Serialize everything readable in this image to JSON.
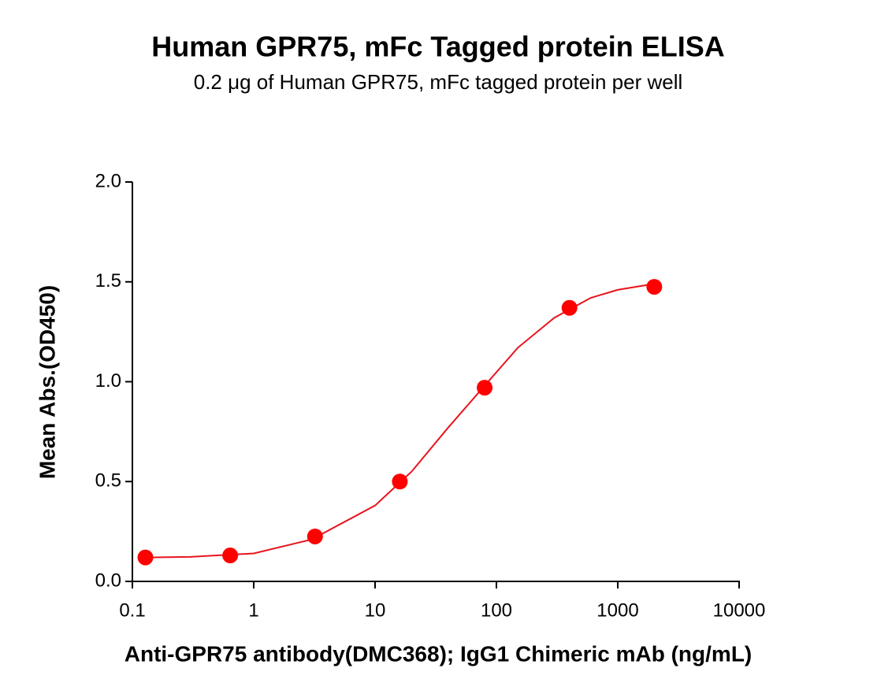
{
  "chart_data": {
    "type": "scatter",
    "title": "Human GPR75, mFc Tagged protein ELISA",
    "subtitle": "0.2 μg of Human GPR75, mFc tagged protein per well",
    "x_label": "Anti-GPR75 antibody(DMC368); IgG1 Chimeric mAb (ng/mL)",
    "y_label": "Mean Abs.(OD450)",
    "x_scale": "log",
    "xlim": [
      0.1,
      10000
    ],
    "xticks": [
      0.1,
      1,
      10,
      100,
      1000,
      10000
    ],
    "ylim": [
      0,
      2
    ],
    "yticks": [
      {
        "value": 0,
        "label": "0.0"
      },
      0.5,
      {
        "value": 1,
        "label": "1.0"
      },
      1.5,
      {
        "value": 2,
        "label": "2.0"
      }
    ],
    "grid": false,
    "series": [
      {
        "color": "#ff0000",
        "marker": "circle",
        "line": false,
        "x": [
          0.128,
          0.64,
          3.2,
          16,
          80,
          400,
          2000
        ],
        "values": [
          0.12,
          0.13,
          0.225,
          0.5,
          0.97,
          1.37,
          1.475
        ]
      },
      {
        "color": "#e8141e",
        "marker": "none",
        "line": true,
        "x": [
          0.128,
          0.3,
          1,
          3,
          10,
          20,
          40,
          80,
          150,
          300,
          600,
          1000,
          2000
        ],
        "values": [
          0.12,
          0.123,
          0.14,
          0.21,
          0.38,
          0.55,
          0.77,
          0.98,
          1.17,
          1.32,
          1.42,
          1.46,
          1.49
        ]
      }
    ]
  }
}
